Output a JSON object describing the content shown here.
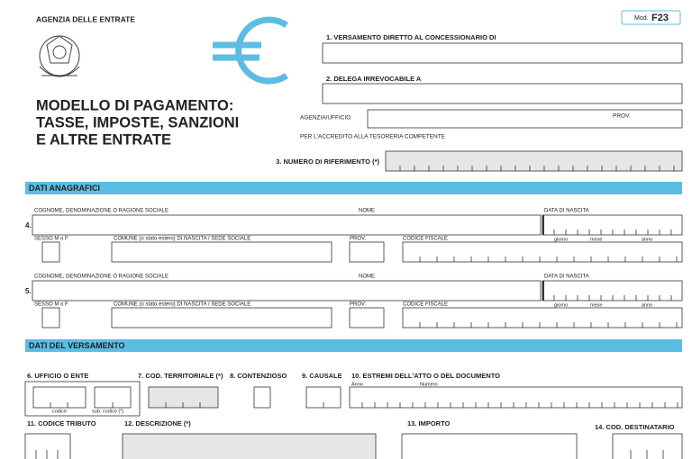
{
  "header": {
    "agency": "AGENZIA DELLE ENTRATE",
    "mod_label": "Mod.",
    "mod_code": "F23",
    "title_lines": [
      "MODELLO DI PAGAMENTO:",
      "TASSE, IMPOSTE, SANZIONI",
      "E ALTRE ENTRATE"
    ]
  },
  "section1": {
    "label": "1. VERSAMENTO DIRETTO AL CONCESSIONARIO DI"
  },
  "section2": {
    "label": "2. DELEGA IRREVOCABILE A",
    "office_label": "AGENZIA/UFFICIO",
    "prov_label": "PROV.",
    "note": "PER L'ACCREDITO ALLA TESORERIA COMPETENTE"
  },
  "section3": {
    "label": "3. NUMERO DI RIFERIMENTO (*)"
  },
  "anagrafici": {
    "heading": "DATI ANAGRAFICI",
    "blocks": [
      {
        "number": "4.",
        "surname_label": "COGNOME, DENOMINAZIONE O RAGIONE SOCIALE",
        "name_label": "NOME",
        "birth_label": "DATA DI NASCITA",
        "sex_label": "SESSO M o F",
        "comune_label": "COMUNE (o stato estero) DI NASCITA / SEDE SOCIALE",
        "prov_label": "PROV.",
        "cf_label": "CODICE FISCALE",
        "day_label": "giorno",
        "month_label": "mese",
        "year_label": "anno"
      },
      {
        "number": "5.",
        "surname_label": "COGNOME, DENOMINAZIONE O RAGIONE SOCIALE",
        "name_label": "NOME",
        "birth_label": "DATA DI NASCITA",
        "sex_label": "SESSO M o F",
        "comune_label": "COMUNE (o stato estero) DI NASCITA / SEDE SOCIALE",
        "prov_label": "PROV.",
        "cf_label": "CODICE FISCALE",
        "day_label": "giorno",
        "month_label": "mese",
        "year_label": "anno"
      }
    ]
  },
  "versamento": {
    "heading": "DATI DEL VERSAMENTO",
    "f6": {
      "label": "6. UFFICIO O ENTE",
      "code_label": "codice",
      "subcode_label": "sub. codice (*)"
    },
    "f7": {
      "label": "7. COD. TERRITORIALE (*)"
    },
    "f8": {
      "label": "8. CONTENZIOSO"
    },
    "f9": {
      "label": "9. CAUSALE"
    },
    "f10": {
      "label": "10. ESTREMI DELL'ATTO O DEL DOCUMENTO",
      "year_label": "Anno",
      "number_label": "Numero"
    },
    "f11": {
      "label": "11. CODICE TRIBUTO"
    },
    "f12": {
      "label": "12. DESCRIZIONE (*)"
    },
    "f13": {
      "label": "13. IMPORTO"
    },
    "f14": {
      "label": "14. COD. DESTINATARIO"
    }
  }
}
